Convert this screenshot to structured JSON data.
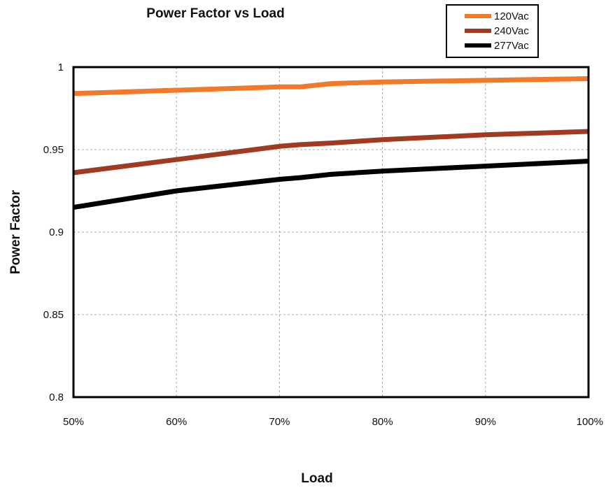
{
  "chart_data": {
    "type": "line",
    "title": "Power Factor vs Load",
    "xlabel": "Load",
    "ylabel": "Power Factor",
    "x": [
      50,
      60,
      70,
      72,
      75,
      80,
      90,
      100
    ],
    "x_ticks": [
      50,
      60,
      70,
      80,
      90,
      100
    ],
    "x_tick_labels": [
      "50%",
      "60%",
      "70%",
      "80%",
      "90%",
      "100%"
    ],
    "y_ticks": [
      0.8,
      0.85,
      0.9,
      0.95,
      1
    ],
    "y_tick_labels": [
      "0.8",
      "0.85",
      "0.9",
      "0.95",
      "1"
    ],
    "xlim": [
      50,
      100
    ],
    "ylim": [
      0.8,
      1
    ],
    "grid": true,
    "legend_position": "top-right",
    "series": [
      {
        "name": "120Vac",
        "color": "#f07a2a",
        "values": [
          0.984,
          0.986,
          0.988,
          0.988,
          0.99,
          0.991,
          0.992,
          0.993
        ]
      },
      {
        "name": "240Vac",
        "color": "#a23a22",
        "values": [
          0.936,
          0.944,
          0.952,
          0.953,
          0.954,
          0.956,
          0.959,
          0.961
        ]
      },
      {
        "name": "277Vac",
        "color": "#000000",
        "values": [
          0.915,
          0.925,
          0.932,
          0.933,
          0.935,
          0.937,
          0.94,
          0.943
        ]
      }
    ]
  }
}
